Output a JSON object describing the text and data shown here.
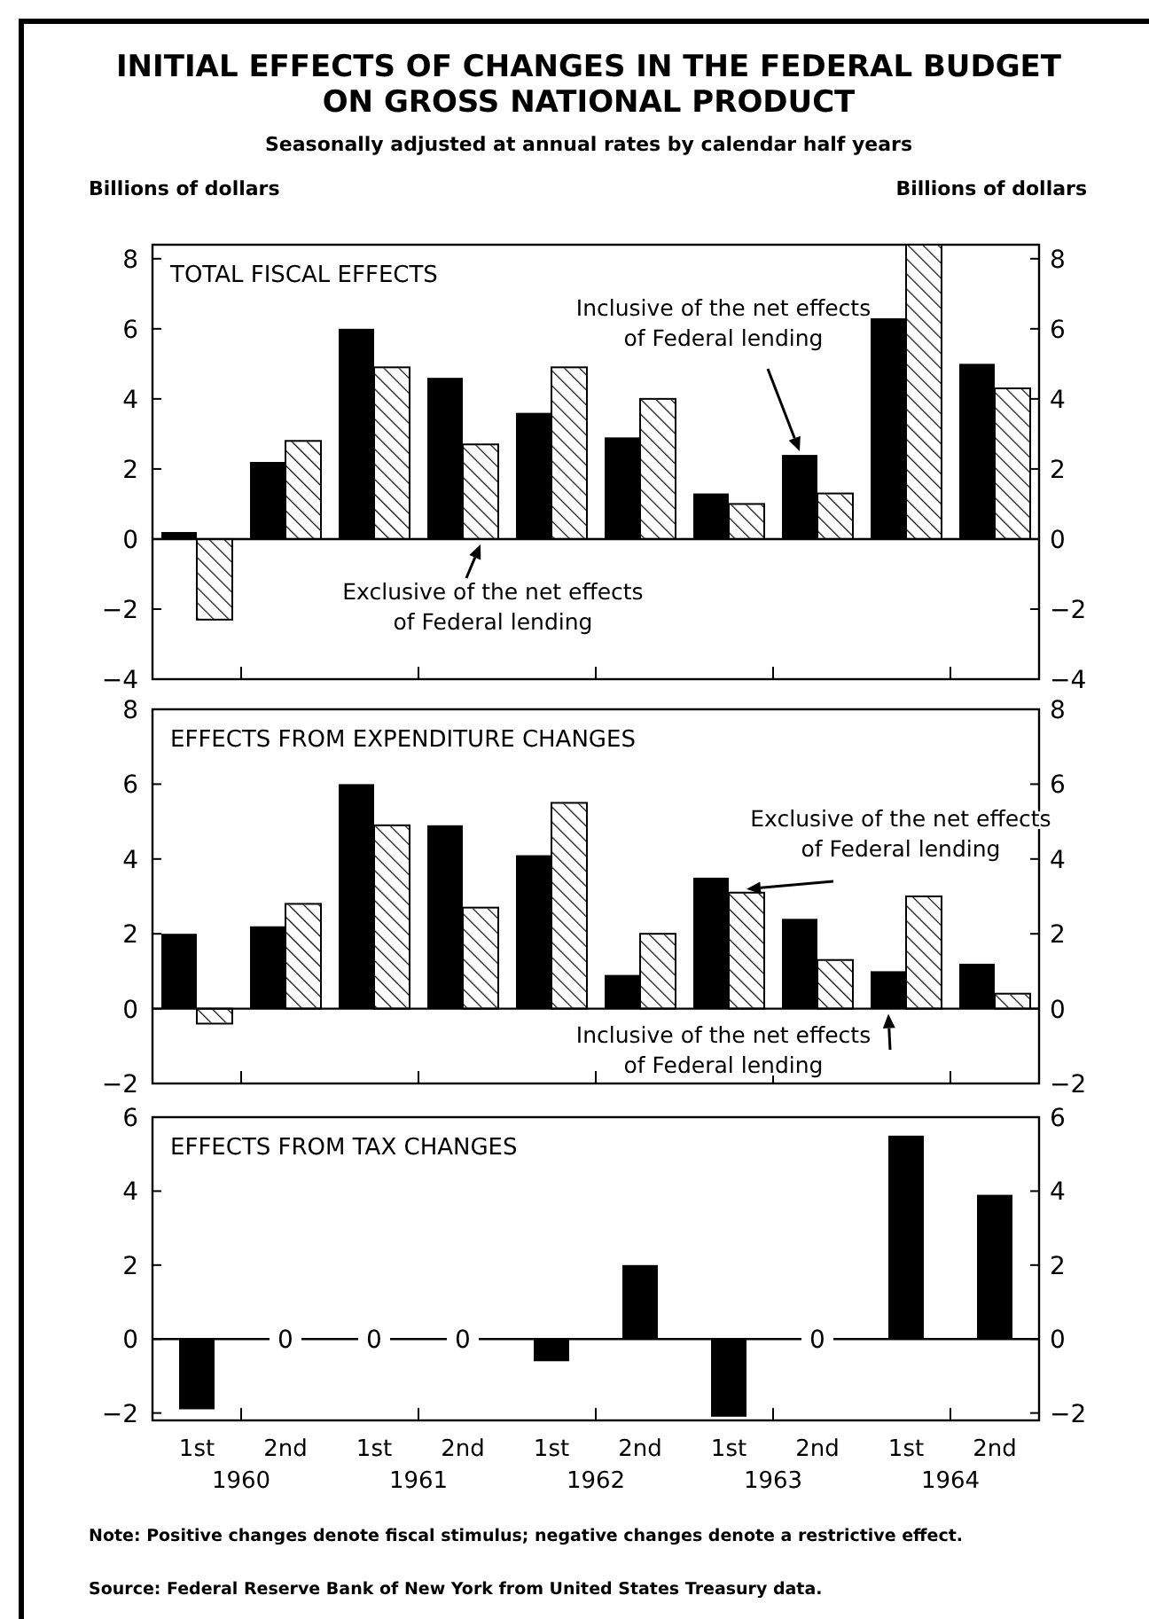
{
  "chart_data": [
    {
      "type": "bar",
      "title": "INITIAL EFFECTS OF CHANGES IN THE FEDERAL BUDGET ON GROSS NATIONAL PRODUCT",
      "subtitle": "Seasonally adjusted at annual rates by calendar half years",
      "ylabel": "Billions of dollars",
      "y2label": "Billions of dollars",
      "categories": [
        null,
        null,
        null,
        null,
        null,
        null,
        null,
        null,
        null,
        null
      ],
      "series": [
        {
          "name": "Inclusive of the net effects of Federal lending",
          "color": "#000000",
          "values": [
            0.2,
            2.2,
            6.0,
            4.6,
            3.6,
            2.9,
            1.3,
            2.4,
            6.3,
            5.0
          ]
        },
        {
          "name": "Exclusive of the net effects of Federal lending",
          "color": "#ffffff",
          "values": [
            -2.3,
            2.8,
            4.9,
            2.7,
            4.9,
            4.0,
            1.0,
            1.3,
            8.4,
            4.3
          ]
        }
      ],
      "ylim": [
        -4,
        8.4
      ],
      "yticks": [
        -4,
        -2,
        0,
        2,
        4,
        6,
        8
      ],
      "y2lim": [
        -4,
        8.4
      ],
      "y2ticks": [
        -4,
        -2,
        0,
        2,
        4,
        6,
        8
      ],
      "tick_labels": "y",
      "annotations": [
        "TOTAL FISCAL EFFECTS"
      ]
    },
    {
      "type": "bar",
      "title": "EFFECTS FROM EXPENDITURE CHANGES",
      "categories": [
        null,
        null,
        null,
        null,
        null,
        null,
        null,
        null,
        null,
        null
      ],
      "series": [
        {
          "name": "Inclusive of the net effects of Federal lending",
          "color": "#000000",
          "values": [
            2.0,
            2.2,
            6.0,
            4.9,
            4.1,
            0.9,
            3.5,
            2.4,
            1.0,
            1.2
          ]
        },
        {
          "name": "Exclusive of the net effects of Federal lending",
          "color": "#ffffff",
          "values": [
            -0.4,
            2.8,
            4.9,
            2.7,
            5.5,
            2.0,
            3.1,
            1.3,
            3.0,
            0.4
          ]
        }
      ],
      "ylim": [
        -2,
        8
      ],
      "yticks": [
        -2,
        0,
        2,
        4,
        6,
        8
      ],
      "y2lim": [
        -2,
        8
      ],
      "y2ticks": [
        -2,
        0,
        2,
        4,
        6,
        8
      ],
      "tick_labels": "y"
    },
    {
      "type": "bar",
      "title": "EFFECTS FROM TAX CHANGES",
      "categories": [
        "1st",
        "2nd",
        "1st",
        "2nd",
        "1st",
        "2nd",
        "1st",
        "2nd",
        "1st",
        "2nd"
      ],
      "series": [
        {
          "color": "#000000",
          "values": [
            -1.9,
            0,
            0,
            0,
            -0.6,
            2.0,
            -2.1,
            0,
            5.5,
            3.9
          ],
          "value_labels": [
            null,
            "0",
            "0",
            "0",
            null,
            null,
            null,
            "0",
            null,
            null
          ]
        }
      ],
      "ylim": [
        -2.2,
        6
      ],
      "yticks": [
        -2,
        0,
        2,
        4,
        6
      ],
      "y2lim": [
        -2.2,
        6
      ],
      "y2ticks": [
        -2,
        0,
        2,
        4,
        6
      ],
      "annotations": [
        "1960",
        "1961",
        "1962",
        "1963",
        "1964",
        "Note: Positive changes denote fiscal stimulus; negative changes denote a restrictive effect.",
        "Source: Federal Reserve Bank of New York from United States Treasury data."
      ]
    }
  ]
}
